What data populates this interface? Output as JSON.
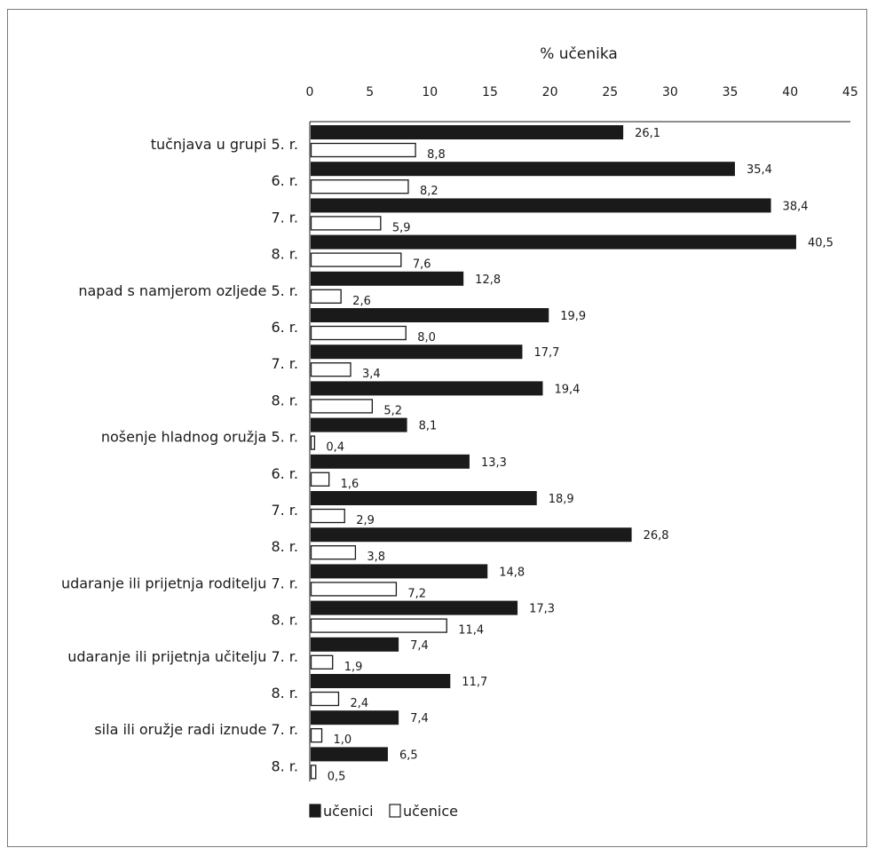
{
  "chart_data": {
    "type": "bar",
    "orientation": "horizontal",
    "title": "% učenika",
    "xlim": [
      0,
      45
    ],
    "xticks": [
      "0",
      "5",
      "10",
      "15",
      "20",
      "25",
      "30",
      "35",
      "40",
      "45"
    ],
    "legend_position": "bottom-left",
    "colors": {
      "učenici": "#1a1a1a",
      "učenice": "#ffffff",
      "outline": "#1a1a1a"
    },
    "groups": [
      {
        "label": "tučnjava u grupi",
        "rows": [
          {
            "grade": "5. r.",
            "boys": 26.1,
            "boys_label": "26,1",
            "girls": 8.8,
            "girls_label": "8,8"
          },
          {
            "grade": "6. r.",
            "boys": 35.4,
            "boys_label": "35,4",
            "girls": 8.2,
            "girls_label": "8,2"
          },
          {
            "grade": "7. r.",
            "boys": 38.4,
            "boys_label": "38,4",
            "girls": 5.9,
            "girls_label": "5,9"
          },
          {
            "grade": "8. r.",
            "boys": 40.5,
            "boys_label": "40,5",
            "girls": 7.6,
            "girls_label": "7,6"
          }
        ]
      },
      {
        "label": "napad s namjerom ozljede",
        "rows": [
          {
            "grade": "5. r.",
            "boys": 12.8,
            "boys_label": "12,8",
            "girls": 2.6,
            "girls_label": "2,6"
          },
          {
            "grade": "6. r.",
            "boys": 19.9,
            "boys_label": "19,9",
            "girls": 8.0,
            "girls_label": "8,0"
          },
          {
            "grade": "7. r.",
            "boys": 17.7,
            "boys_label": "17,7",
            "girls": 3.4,
            "girls_label": "3,4"
          },
          {
            "grade": "8. r.",
            "boys": 19.4,
            "boys_label": "19,4",
            "girls": 5.2,
            "girls_label": "5,2"
          }
        ]
      },
      {
        "label": "nošenje hladnog oružja",
        "rows": [
          {
            "grade": "5. r.",
            "boys": 8.1,
            "boys_label": "8,1",
            "girls": 0.4,
            "girls_label": "0,4"
          },
          {
            "grade": "6. r.",
            "boys": 13.3,
            "boys_label": "13,3",
            "girls": 1.6,
            "girls_label": "1,6"
          },
          {
            "grade": "7. r.",
            "boys": 18.9,
            "boys_label": "18,9",
            "girls": 2.9,
            "girls_label": "2,9"
          },
          {
            "grade": "8. r.",
            "boys": 26.8,
            "boys_label": "26,8",
            "girls": 3.8,
            "girls_label": "3,8"
          }
        ]
      },
      {
        "label": "udaranje ili prijetnja roditelju",
        "rows": [
          {
            "grade": "7. r.",
            "boys": 14.8,
            "boys_label": "14,8",
            "girls": 7.2,
            "girls_label": "7,2"
          },
          {
            "grade": "8. r.",
            "boys": 17.3,
            "boys_label": "17,3",
            "girls": 11.4,
            "girls_label": "11,4"
          }
        ]
      },
      {
        "label": "udaranje ili prijetnja učitelju",
        "rows": [
          {
            "grade": "7. r.",
            "boys": 7.4,
            "boys_label": "7,4",
            "girls": 1.9,
            "girls_label": "1,9"
          },
          {
            "grade": "8. r.",
            "boys": 11.7,
            "boys_label": "11,7",
            "girls": 2.4,
            "girls_label": "2,4"
          }
        ]
      },
      {
        "label": "sila ili oružje radi iznude",
        "rows": [
          {
            "grade": "7. r.",
            "boys": 7.4,
            "boys_label": "7,4",
            "girls": 1.0,
            "girls_label": "1,0"
          },
          {
            "grade": "8. r.",
            "boys": 6.5,
            "boys_label": "6,5",
            "girls": 0.5,
            "girls_label": "0,5"
          }
        ]
      }
    ],
    "legend": [
      {
        "name": "učenici",
        "fill": "#1a1a1a"
      },
      {
        "name": "učenice",
        "fill": "#ffffff"
      }
    ]
  }
}
